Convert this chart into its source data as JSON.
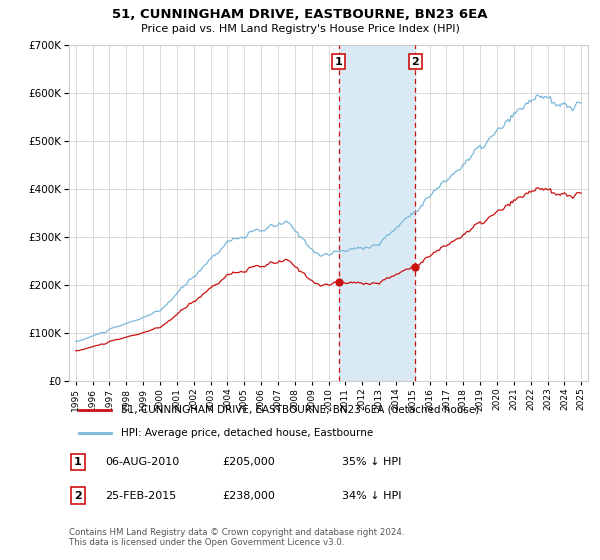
{
  "title": "51, CUNNINGHAM DRIVE, EASTBOURNE, BN23 6EA",
  "subtitle": "Price paid vs. HM Land Registry's House Price Index (HPI)",
  "hpi_label": "HPI: Average price, detached house, Eastbourne",
  "price_label": "51, CUNNINGHAM DRIVE, EASTBOURNE, BN23 6EA (detached house)",
  "footnote": "Contains HM Land Registry data © Crown copyright and database right 2024.\nThis data is licensed under the Open Government Licence v3.0.",
  "sale1_date": "06-AUG-2010",
  "sale1_price": "£205,000",
  "sale1_pct": "35% ↓ HPI",
  "sale2_date": "25-FEB-2015",
  "sale2_price": "£238,000",
  "sale2_pct": "34% ↓ HPI",
  "sale1_x": 2010.6,
  "sale1_y": 205000,
  "sale2_x": 2015.15,
  "sale2_y": 238000,
  "vline1_x": 2010.6,
  "vline2_x": 2015.15,
  "shade_start": 2010.6,
  "shade_end": 2015.15,
  "hpi_color": "#7ab8d9",
  "price_color": "#cc1111",
  "shade_color": "#daeaf5",
  "vline_color": "#cc1111",
  "grid_color": "#cccccc",
  "bg_color": "#ffffff",
  "ylim": [
    0,
    700000
  ],
  "xlim_start": 1994.6,
  "xlim_end": 2025.4
}
